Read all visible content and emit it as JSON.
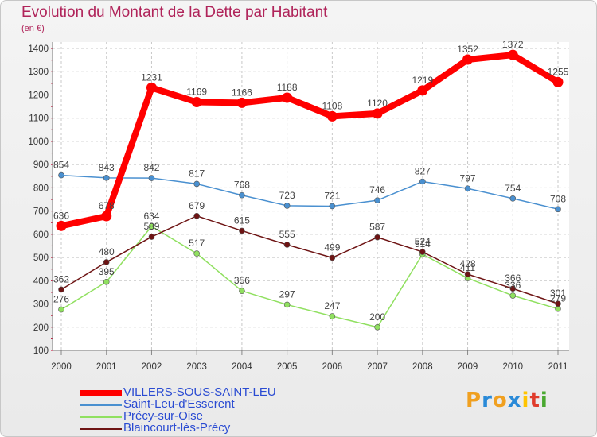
{
  "title": "Evolution du Montant de la Dette par Habitant",
  "subtitle": "(en €)",
  "logo": {
    "letters": [
      "P",
      "r",
      "o",
      "x",
      "i",
      "t",
      "i"
    ],
    "colors": [
      "#f0a020",
      "#2a8ad8",
      "#f0a020",
      "#2a8ad8",
      "#ffc400",
      "#e03c2c",
      "#4aa830"
    ]
  },
  "chart_data": {
    "type": "line",
    "x": [
      "2000",
      "2001",
      "2002",
      "2003",
      "2004",
      "2005",
      "2006",
      "2007",
      "2008",
      "2009",
      "2010",
      "2011"
    ],
    "ylim": [
      100,
      1400
    ],
    "yticks": [
      "100",
      "200",
      "300",
      "400",
      "500",
      "600",
      "700",
      "800",
      "900",
      "1000",
      "1100",
      "1200",
      "1300",
      "1400"
    ],
    "grid": true,
    "legend_position": "bottom-left",
    "series": [
      {
        "name": "VILLERS-SOUS-SAINT-LEU",
        "color": "#ff0000",
        "emphasis": true,
        "values": [
          636,
          678,
          1231,
          1169,
          1166,
          1188,
          1108,
          1120,
          1219,
          1352,
          1372,
          1255
        ],
        "labels": [
          "636",
          "678",
          "1231",
          "1169",
          "1166",
          "1188",
          "1108",
          "1120",
          "1219",
          "1352",
          "1372",
          "1255"
        ]
      },
      {
        "name": "Saint-Leu-d'Esserent",
        "color": "#4a90d0",
        "values": [
          854,
          843,
          842,
          817,
          768,
          723,
          721,
          746,
          827,
          797,
          754,
          708
        ],
        "labels": [
          "854",
          "843",
          "842",
          "817",
          "768",
          "723",
          "721",
          "746",
          "827",
          "797",
          "754",
          "708"
        ]
      },
      {
        "name": "Précy-sur-Oise",
        "color": "#90e060",
        "values": [
          276,
          395,
          634,
          517,
          356,
          297,
          247,
          200,
          514,
          411,
          336,
          279
        ],
        "labels": [
          "276",
          "395",
          "634",
          "517",
          "356",
          "297",
          "247",
          "200",
          "514",
          "411",
          "336",
          "279"
        ]
      },
      {
        "name": "Blaincourt-lès-Précy",
        "color": "#6e1414",
        "values": [
          362,
          480,
          589,
          679,
          615,
          555,
          499,
          587,
          524,
          428,
          366,
          301
        ],
        "labels": [
          "362",
          "480",
          "589",
          "679",
          "615",
          "555",
          "499",
          "587",
          "524",
          "428",
          "366",
          "301"
        ]
      }
    ]
  }
}
